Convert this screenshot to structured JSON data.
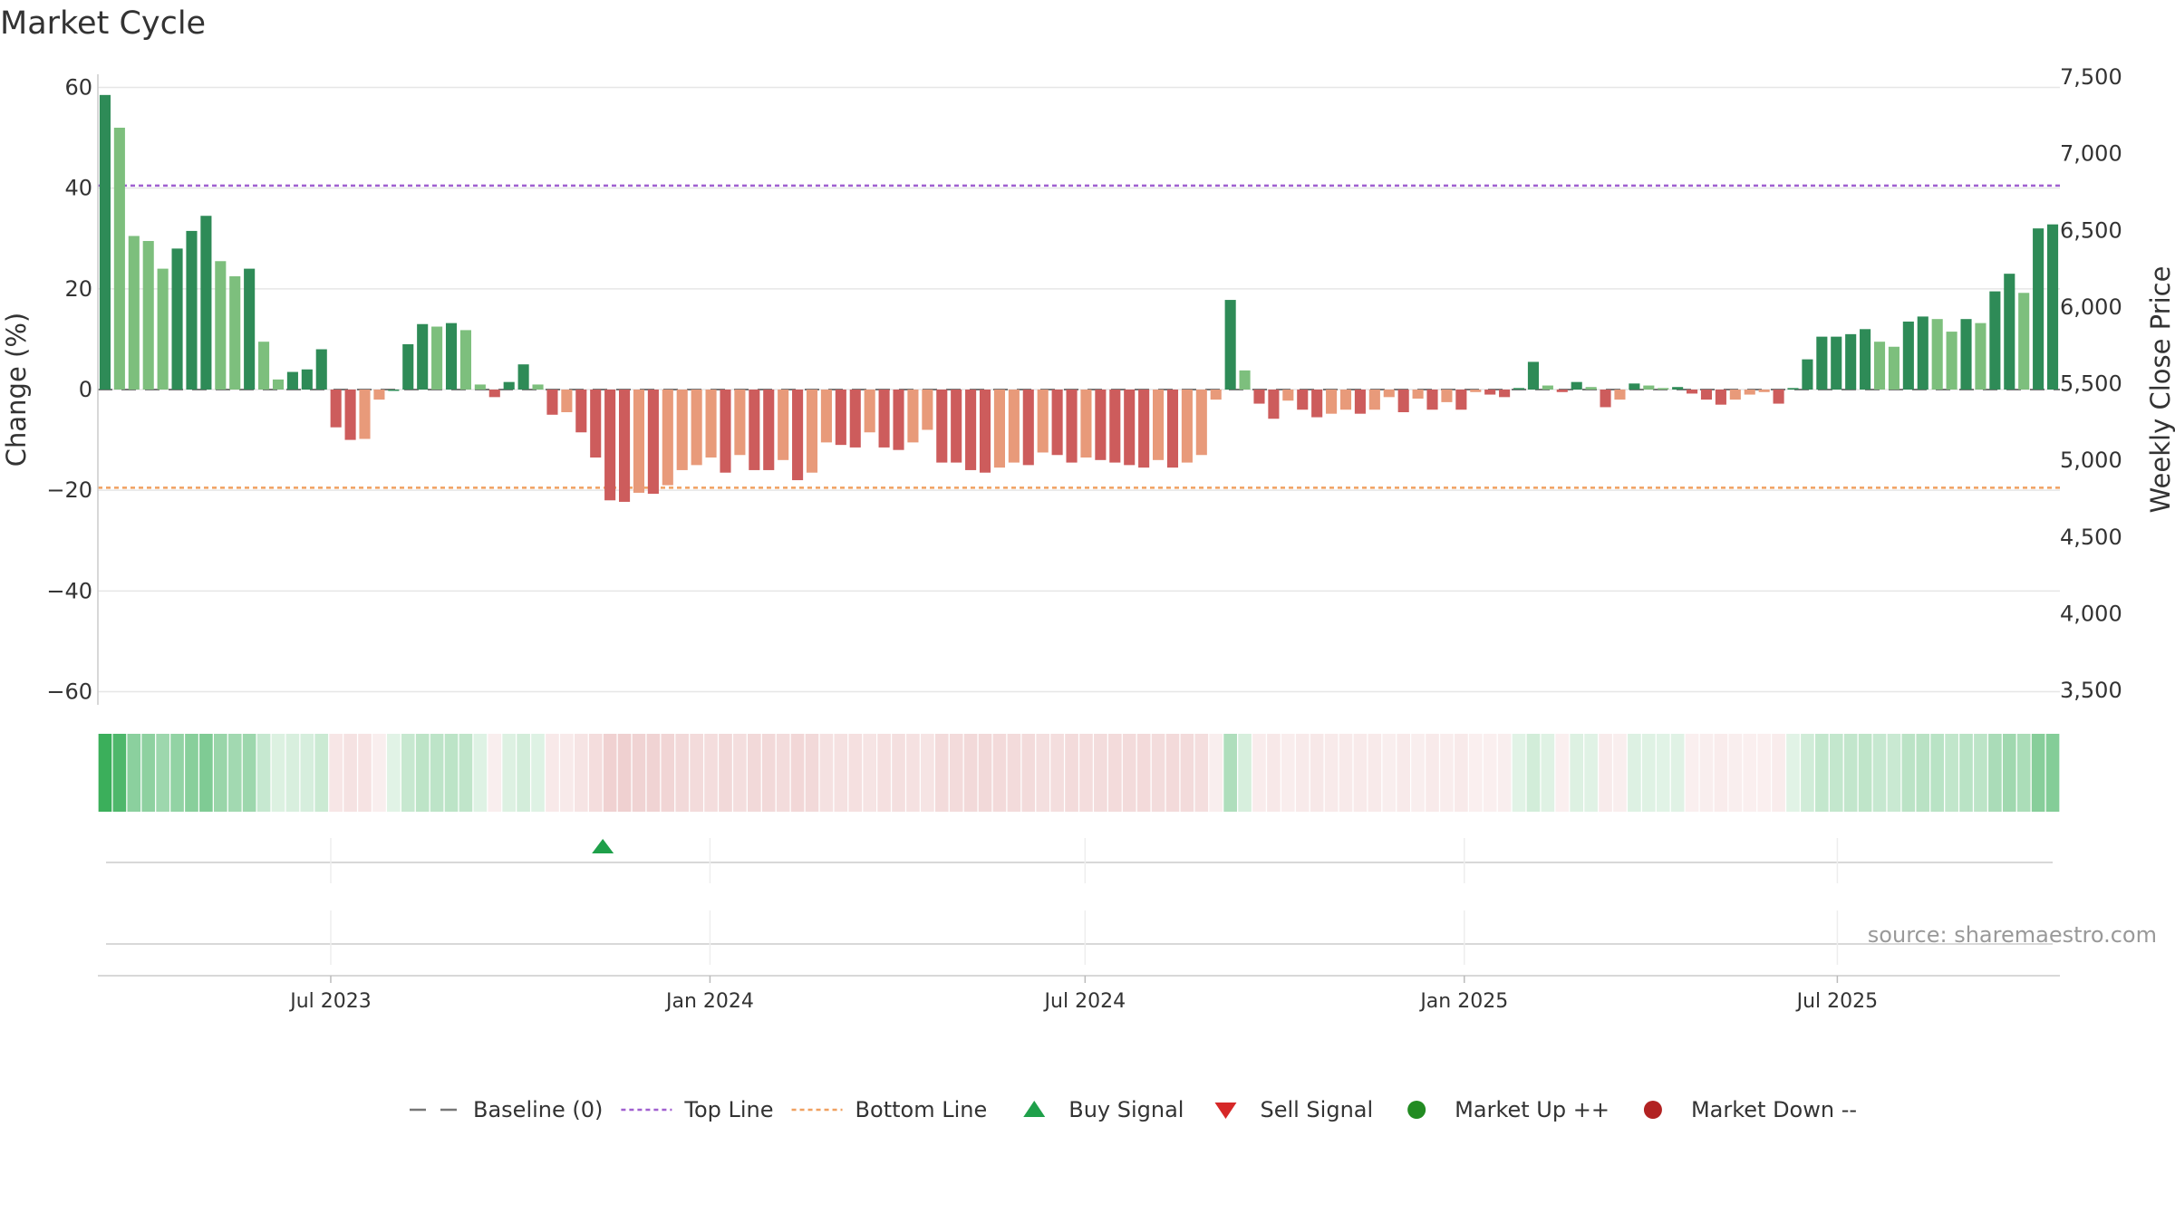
{
  "chart_data": {
    "type": "bar",
    "title": "Market Cycle",
    "ylabel": "Change (%)",
    "y2label": "Weekly Close Price",
    "ylim": [
      -60,
      60
    ],
    "yticks": [
      60,
      40,
      20,
      0,
      -20,
      -40,
      -60
    ],
    "ytick_labels": [
      "60",
      "40",
      "20",
      "0",
      "−20",
      "−40",
      "−60"
    ],
    "y2lim": [
      3500,
      7500
    ],
    "y2tick_labels": [
      "7,500",
      "7,000",
      "6,500",
      "6,000",
      "5,500",
      "5,000",
      "4,500",
      "4,000",
      "3,500"
    ],
    "x_start": "2023-03-10",
    "x_end": "2025-10-17",
    "xtick_dates": [
      "2023-07-01",
      "2024-01-01",
      "2024-07-01",
      "2025-01-01",
      "2025-07-01"
    ],
    "xtick_labels": [
      "Jul 2023",
      "Jan 2024",
      "Jul 2024",
      "Jan 2025",
      "Jul 2025"
    ],
    "top_line": 40.5,
    "bottom_line": -19.5,
    "grid": true,
    "legend_position": "bottom",
    "values": [
      58.5,
      52.0,
      30.5,
      29.5,
      24.0,
      28.0,
      31.5,
      34.5,
      25.5,
      22.5,
      24.0,
      9.5,
      2.0,
      3.5,
      4.0,
      8.0,
      -7.5,
      -10.0,
      -9.8,
      -2.0,
      0.0,
      9.0,
      13.0,
      12.5,
      13.2,
      11.8,
      1.0,
      -1.5,
      1.5,
      5.0,
      1.0,
      -5.0,
      -4.5,
      -8.5,
      -13.5,
      -22.0,
      -22.3,
      -20.5,
      -20.7,
      -19.0,
      -16.0,
      -15.0,
      -13.5,
      -16.5,
      -13.0,
      -16.0,
      -16.0,
      -14.0,
      -18.0,
      -16.5,
      -10.5,
      -11.0,
      -11.5,
      -8.5,
      -11.5,
      -12.0,
      -10.5,
      -8.0,
      -14.5,
      -14.5,
      -16.0,
      -16.5,
      -15.5,
      -14.5,
      -15.0,
      -12.5,
      -13.0,
      -14.5,
      -13.5,
      -14.0,
      -14.5,
      -15.0,
      -15.5,
      -14.0,
      -15.5,
      -14.5,
      -13.0,
      -2.0,
      17.8,
      3.8,
      -2.8,
      -5.8,
      -2.2,
      -4.0,
      -5.5,
      -4.8,
      -4.0,
      -4.8,
      -4.0,
      -1.5,
      -4.5,
      -1.8,
      -4.0,
      -2.5,
      -4.0,
      -0.5,
      -1.0,
      -1.5,
      0.3,
      5.5,
      0.8,
      -0.5,
      1.5,
      0.5,
      -3.5,
      -2.0,
      1.2,
      0.8,
      0.3,
      0.5,
      -0.8,
      -2.0,
      -3.0,
      -2.0,
      -1.0,
      -0.5,
      -2.8,
      0.3,
      6.0,
      10.5,
      10.5,
      11.0,
      12.0,
      9.5,
      8.5,
      13.5,
      14.5,
      14.0,
      11.5,
      14.0,
      13.2,
      19.5,
      23.0,
      19.2,
      32.0,
      32.8
    ],
    "buy_signals": [
      {
        "date": "2023-11-10",
        "label": "Buy Signal"
      }
    ],
    "sell_signals": [],
    "colors": {
      "positive_dark": "#2e8b57",
      "positive_light": "#7dbf7d",
      "negative_dark": "#cd5c5c",
      "negative_light": "#e89a7a",
      "top_line": "#a060d0",
      "bottom_line": "#f0a060",
      "buy_signal": "#1fa04a",
      "sell_signal": "#d62828",
      "market_up": "#228b22",
      "market_down": "#b22222"
    },
    "legend": [
      {
        "label": "Baseline (0)",
        "marker": "dash",
        "color": "#777777"
      },
      {
        "label": "Top Line",
        "marker": "dot",
        "color": "#a060d0"
      },
      {
        "label": "Bottom Line",
        "marker": "dot",
        "color": "#f0a060"
      },
      {
        "label": "Buy Signal",
        "marker": "triangle-up",
        "color": "#1fa04a"
      },
      {
        "label": "Sell Signal",
        "marker": "triangle-down",
        "color": "#d62828"
      },
      {
        "label": "Market Up ++",
        "marker": "circle",
        "color": "#228b22"
      },
      {
        "label": "Market Down --",
        "marker": "circle",
        "color": "#b22222"
      }
    ],
    "source": "source: sharemaestro.com"
  }
}
